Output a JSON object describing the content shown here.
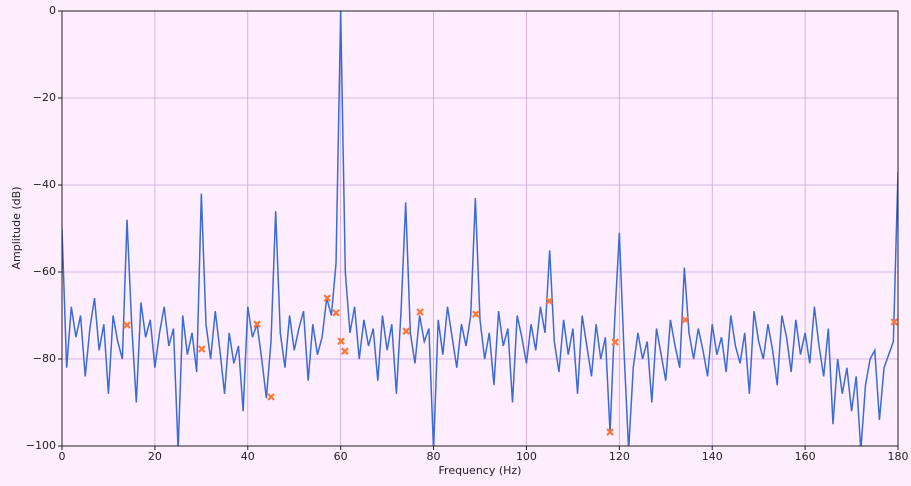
{
  "chart_data": {
    "type": "line",
    "xlabel": "Frequency (Hz)",
    "ylabel": "Amplitude (dB)",
    "xlim": [
      0,
      180
    ],
    "ylim": [
      -100,
      0
    ],
    "xticks": [
      0,
      20,
      40,
      60,
      80,
      100,
      120,
      140,
      160,
      180
    ],
    "yticks": [
      {
        "value": -100,
        "label": "−100"
      },
      {
        "value": -80,
        "label": "−80"
      },
      {
        "value": -60,
        "label": "−60"
      },
      {
        "value": -40,
        "label": "−40"
      },
      {
        "value": -20,
        "label": "−20"
      },
      0
    ],
    "grid": true,
    "grid_color": "#c9a6dc",
    "background": "#ffeeff",
    "series": [
      {
        "type": "line",
        "color": "#3a6bd6",
        "x": [
          0,
          1,
          2,
          3,
          4,
          5,
          6,
          7,
          8,
          9,
          10,
          11,
          12,
          13,
          14,
          15,
          16,
          17,
          18,
          19,
          20,
          21,
          22,
          23,
          24,
          25,
          26,
          27,
          28,
          29,
          30,
          31,
          32,
          33,
          34,
          35,
          36,
          37,
          38,
          39,
          40,
          41,
          42,
          43,
          44,
          45,
          46,
          47,
          48,
          49,
          50,
          51,
          52,
          53,
          54,
          55,
          56,
          57,
          58,
          59,
          60,
          61,
          62,
          63,
          64,
          65,
          66,
          67,
          68,
          69,
          70,
          71,
          72,
          73,
          74,
          75,
          76,
          77,
          78,
          79,
          80,
          81,
          82,
          83,
          84,
          85,
          86,
          87,
          88,
          89,
          90,
          91,
          92,
          93,
          94,
          95,
          96,
          97,
          98,
          99,
          100,
          101,
          102,
          103,
          104,
          105,
          106,
          107,
          108,
          109,
          110,
          111,
          112,
          113,
          114,
          115,
          116,
          117,
          118,
          119,
          120,
          121,
          122,
          123,
          124,
          125,
          126,
          127,
          128,
          129,
          130,
          131,
          132,
          133,
          134,
          135,
          136,
          137,
          138,
          139,
          140,
          141,
          142,
          143,
          144,
          145,
          146,
          147,
          148,
          149,
          150,
          151,
          152,
          153,
          154,
          155,
          156,
          157,
          158,
          159,
          160,
          161,
          162,
          163,
          164,
          165,
          166,
          167,
          168,
          169,
          170,
          171,
          172,
          173,
          174,
          175,
          176,
          177,
          178,
          179,
          180
        ],
        "values": [
          -50,
          -82,
          -68,
          -75,
          -70,
          -84,
          -73,
          -66,
          -78,
          -72,
          -88,
          -70,
          -76,
          -80,
          -48,
          -72,
          -90,
          -67,
          -75,
          -71,
          -82,
          -74,
          -68,
          -77,
          -73,
          -101,
          -70,
          -79,
          -74,
          -83,
          -42,
          -72,
          -80,
          -69,
          -78,
          -88,
          -74,
          -81,
          -77,
          -92,
          -68,
          -75,
          -72,
          -80,
          -89,
          -76,
          -46,
          -74,
          -82,
          -70,
          -78,
          -73,
          -69,
          -85,
          -72,
          -79,
          -75,
          -66,
          -70,
          -58,
          0,
          -60,
          -74,
          -68,
          -80,
          -71,
          -77,
          -73,
          -85,
          -70,
          -78,
          -72,
          -88,
          -69,
          -44,
          -74,
          -81,
          -70,
          -76,
          -73,
          -101,
          -71,
          -79,
          -68,
          -75,
          -82,
          -72,
          -77,
          -70,
          -43,
          -71,
          -80,
          -74,
          -86,
          -69,
          -77,
          -73,
          -90,
          -70,
          -75,
          -81,
          -72,
          -78,
          -68,
          -74,
          -55,
          -76,
          -83,
          -71,
          -79,
          -73,
          -88,
          -70,
          -77,
          -84,
          -72,
          -80,
          -75,
          -97,
          -71,
          -51,
          -78,
          -101,
          -82,
          -74,
          -80,
          -76,
          -90,
          -73,
          -79,
          -85,
          -71,
          -77,
          -82,
          -59,
          -74,
          -80,
          -73,
          -78,
          -84,
          -72,
          -79,
          -75,
          -83,
          -70,
          -77,
          -81,
          -74,
          -88,
          -69,
          -76,
          -80,
          -72,
          -78,
          -86,
          -70,
          -75,
          -83,
          -71,
          -79,
          -74,
          -81,
          -68,
          -77,
          -84,
          -73,
          -95,
          -80,
          -88,
          -82,
          -92,
          -84,
          -101,
          -86,
          -80,
          -78,
          -94,
          -82,
          -79,
          -76,
          -37
        ]
      },
      {
        "type": "scatter",
        "color": "#ff7733",
        "x": [
          14,
          30.1,
          42,
          45,
          57.1,
          59,
          60.1,
          60.9,
          74.1,
          77.1,
          89.1,
          104.9,
          118,
          119.1,
          134.2,
          179.2
        ],
        "values": [
          -72.2,
          -77.7,
          -72,
          -88.7,
          -66,
          -69.4,
          -75.9,
          -78.2,
          -73.6,
          -69.2,
          -69.7,
          -66.7,
          -96.8,
          -76.1,
          -71,
          -71.5
        ]
      }
    ]
  }
}
